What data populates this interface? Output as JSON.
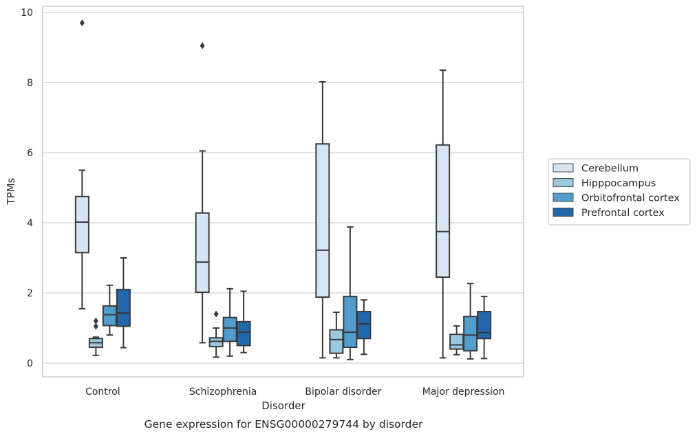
{
  "caption": "Gene expression for ENSG00000279744 by disorder",
  "chart_data": {
    "type": "box",
    "title": "",
    "xlabel": "Disorder",
    "ylabel": "TPMs",
    "ylim": [
      -0.4,
      10.2
    ],
    "yticks": [
      0,
      2,
      4,
      6,
      8,
      10
    ],
    "grid": true,
    "legend_position": "right",
    "categories": [
      "Control",
      "Schizophrenia",
      "Bipolar disorder",
      "Major depression"
    ],
    "series": [
      {
        "name": "Cerebellum",
        "color": "#d6e5f4",
        "boxes": [
          {
            "low": 1.55,
            "q1": 3.15,
            "median": 4.02,
            "q3": 4.75,
            "high": 5.5,
            "outliers": [
              9.7
            ]
          },
          {
            "low": 0.58,
            "q1": 2.02,
            "median": 2.88,
            "q3": 4.28,
            "high": 6.05,
            "outliers": [
              9.05
            ]
          },
          {
            "low": 0.15,
            "q1": 1.88,
            "median": 3.22,
            "q3": 6.25,
            "high": 8.02,
            "outliers": []
          },
          {
            "low": 0.15,
            "q1": 2.45,
            "median": 3.75,
            "q3": 6.22,
            "high": 8.35,
            "outliers": []
          }
        ]
      },
      {
        "name": "Hipppocampus",
        "color": "#9ac8e0",
        "boxes": [
          {
            "low": 0.22,
            "q1": 0.45,
            "median": 0.58,
            "q3": 0.7,
            "high": 0.74,
            "outliers": [
              1.05,
              1.2
            ]
          },
          {
            "low": 0.17,
            "q1": 0.47,
            "median": 0.62,
            "q3": 0.72,
            "high": 1.0,
            "outliers": [
              1.4
            ]
          },
          {
            "low": 0.15,
            "q1": 0.28,
            "median": 0.67,
            "q3": 0.95,
            "high": 1.45,
            "outliers": []
          },
          {
            "low": 0.24,
            "q1": 0.4,
            "median": 0.52,
            "q3": 0.82,
            "high": 1.06,
            "outliers": []
          }
        ]
      },
      {
        "name": "Orbitofrontal cortex",
        "color": "#529dcc",
        "boxes": [
          {
            "low": 0.8,
            "q1": 1.07,
            "median": 1.38,
            "q3": 1.63,
            "high": 2.22,
            "outliers": []
          },
          {
            "low": 0.2,
            "q1": 0.62,
            "median": 1.0,
            "q3": 1.3,
            "high": 2.12,
            "outliers": []
          },
          {
            "low": 0.1,
            "q1": 0.45,
            "median": 0.88,
            "q3": 1.9,
            "high": 3.88,
            "outliers": []
          },
          {
            "low": 0.12,
            "q1": 0.35,
            "median": 0.8,
            "q3": 1.33,
            "high": 2.27,
            "outliers": []
          }
        ]
      },
      {
        "name": "Prefrontal cortex",
        "color": "#2367ac",
        "boxes": [
          {
            "low": 0.44,
            "q1": 1.05,
            "median": 1.43,
            "q3": 2.1,
            "high": 3.0,
            "outliers": []
          },
          {
            "low": 0.3,
            "q1": 0.5,
            "median": 0.88,
            "q3": 1.18,
            "high": 2.05,
            "outliers": []
          },
          {
            "low": 0.25,
            "q1": 0.7,
            "median": 1.12,
            "q3": 1.47,
            "high": 1.8,
            "outliers": []
          },
          {
            "low": 0.13,
            "q1": 0.7,
            "median": 0.87,
            "q3": 1.47,
            "high": 1.9,
            "outliers": []
          }
        ]
      }
    ]
  }
}
